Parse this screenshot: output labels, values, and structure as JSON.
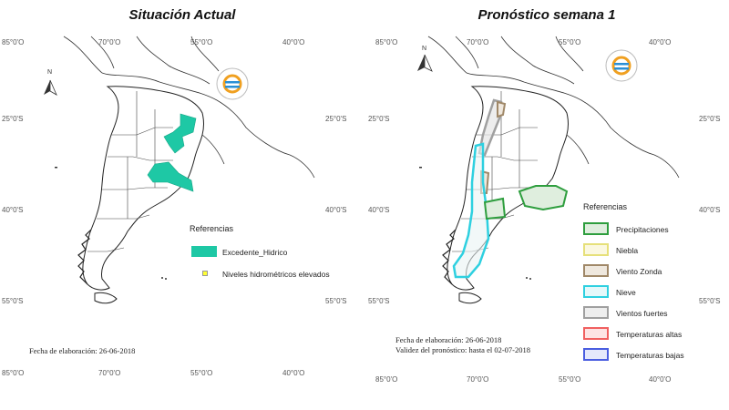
{
  "left_panel": {
    "title": "Situación Actual",
    "coords_top": [
      "85°0'O",
      "70°0'O",
      "55°0'O",
      "40°0'O"
    ],
    "coords_bottom": [
      "85°0'O",
      "70°0'O",
      "55°0'O",
      "40°0'O"
    ],
    "coords_left": [
      "25°0'S",
      "40°0'S",
      "55°0'S"
    ],
    "coords_right": [
      "25°0'S",
      "40°0'S",
      "55°0'S"
    ],
    "north_label": "N",
    "legend": {
      "title": "Referencias",
      "items": [
        {
          "label": "Excedente_Hidrico",
          "color": "#1ec8a5"
        },
        {
          "label": "Niveles hidrométricos elevados",
          "color": "#ffff33"
        }
      ]
    },
    "footnote": "Fecha de elaboración: 26-06-2018"
  },
  "right_panel": {
    "title": "Pronóstico semana 1",
    "coords_top": [
      "85°0'O",
      "70°0'O",
      "55°0'O",
      "40°0'O"
    ],
    "coords_bottom": [
      "85°0'O",
      "70°0'O",
      "55°0'O",
      "40°0'O"
    ],
    "coords_left": [
      "25°0'S",
      "40°0'S",
      "55°0'S"
    ],
    "coords_right": [
      "25°0'S",
      "40°0'S",
      "55°0'S"
    ],
    "north_label": "N",
    "legend": {
      "title": "Referencias",
      "items": [
        {
          "label": "Precipitaciones",
          "color": "#2e9e3e"
        },
        {
          "label": "Niebla",
          "color": "#e6e07a"
        },
        {
          "label": "Viento Zonda",
          "color": "#a08868"
        },
        {
          "label": "Nieve",
          "color": "#2ed0e0"
        },
        {
          "label": "Vientos fuertes",
          "color": "#a0a0a0"
        },
        {
          "label": "Temperaturas altas",
          "color": "#f06060"
        },
        {
          "label": "Temperaturas bajas",
          "color": "#4a5ee0"
        }
      ]
    },
    "footnote_lines": [
      "Fecha de elaboración: 26-06-2018",
      "Validez del pronóstico: hasta el 02-07-2018"
    ]
  }
}
